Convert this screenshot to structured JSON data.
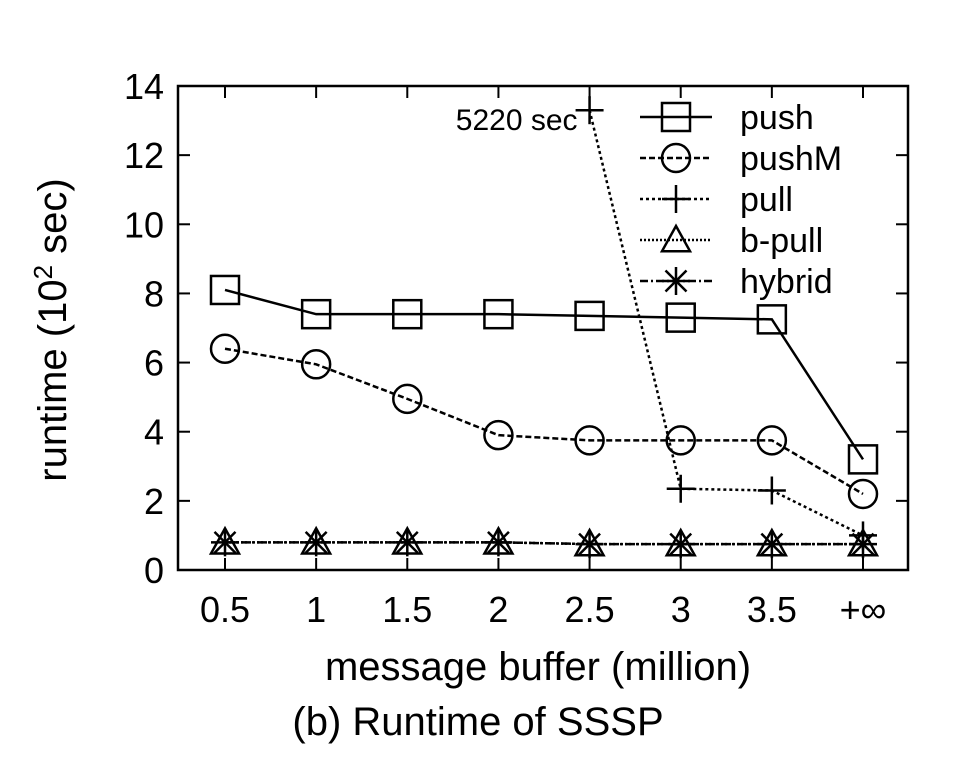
{
  "chart_data": {
    "type": "line",
    "title": "",
    "xlabel": "message buffer (million)",
    "ylabel_main": "runtime (10",
    "ylabel_sup": "2",
    "ylabel_tail": " sec)",
    "categories": [
      "0.5",
      "1",
      "1.5",
      "2",
      "2.5",
      "3",
      "3.5",
      "+∞"
    ],
    "y_ticks": [
      "0",
      "2",
      "4",
      "6",
      "8",
      "10",
      "12",
      "14"
    ],
    "ylim": [
      0,
      14
    ],
    "grid": false,
    "legend_position": "top-right",
    "series": [
      {
        "name": "push",
        "marker": "square",
        "dash": "solid",
        "values": [
          8.1,
          7.4,
          7.4,
          7.4,
          7.35,
          7.3,
          7.25,
          3.2
        ]
      },
      {
        "name": "pushM",
        "marker": "circle",
        "dash": "dashed",
        "values": [
          6.4,
          5.95,
          4.95,
          3.9,
          3.75,
          3.75,
          3.75,
          2.2
        ]
      },
      {
        "name": "pull",
        "marker": "plus",
        "dash": "dotted",
        "values": [
          null,
          null,
          null,
          null,
          13.3,
          2.35,
          2.3,
          1.0
        ]
      },
      {
        "name": "b-pull",
        "marker": "triangle",
        "dash": "dotted-fine",
        "values": [
          0.8,
          0.8,
          0.8,
          0.8,
          0.75,
          0.75,
          0.75,
          0.75
        ]
      },
      {
        "name": "hybrid",
        "marker": "asterisk",
        "dash": "dashdot",
        "values": [
          0.8,
          0.8,
          0.8,
          0.8,
          0.75,
          0.75,
          0.75,
          0.75
        ]
      }
    ],
    "annotation": {
      "text": "5220 sec",
      "series": "pull",
      "category_index": 4
    }
  },
  "caption": "(b) Runtime of SSSP"
}
